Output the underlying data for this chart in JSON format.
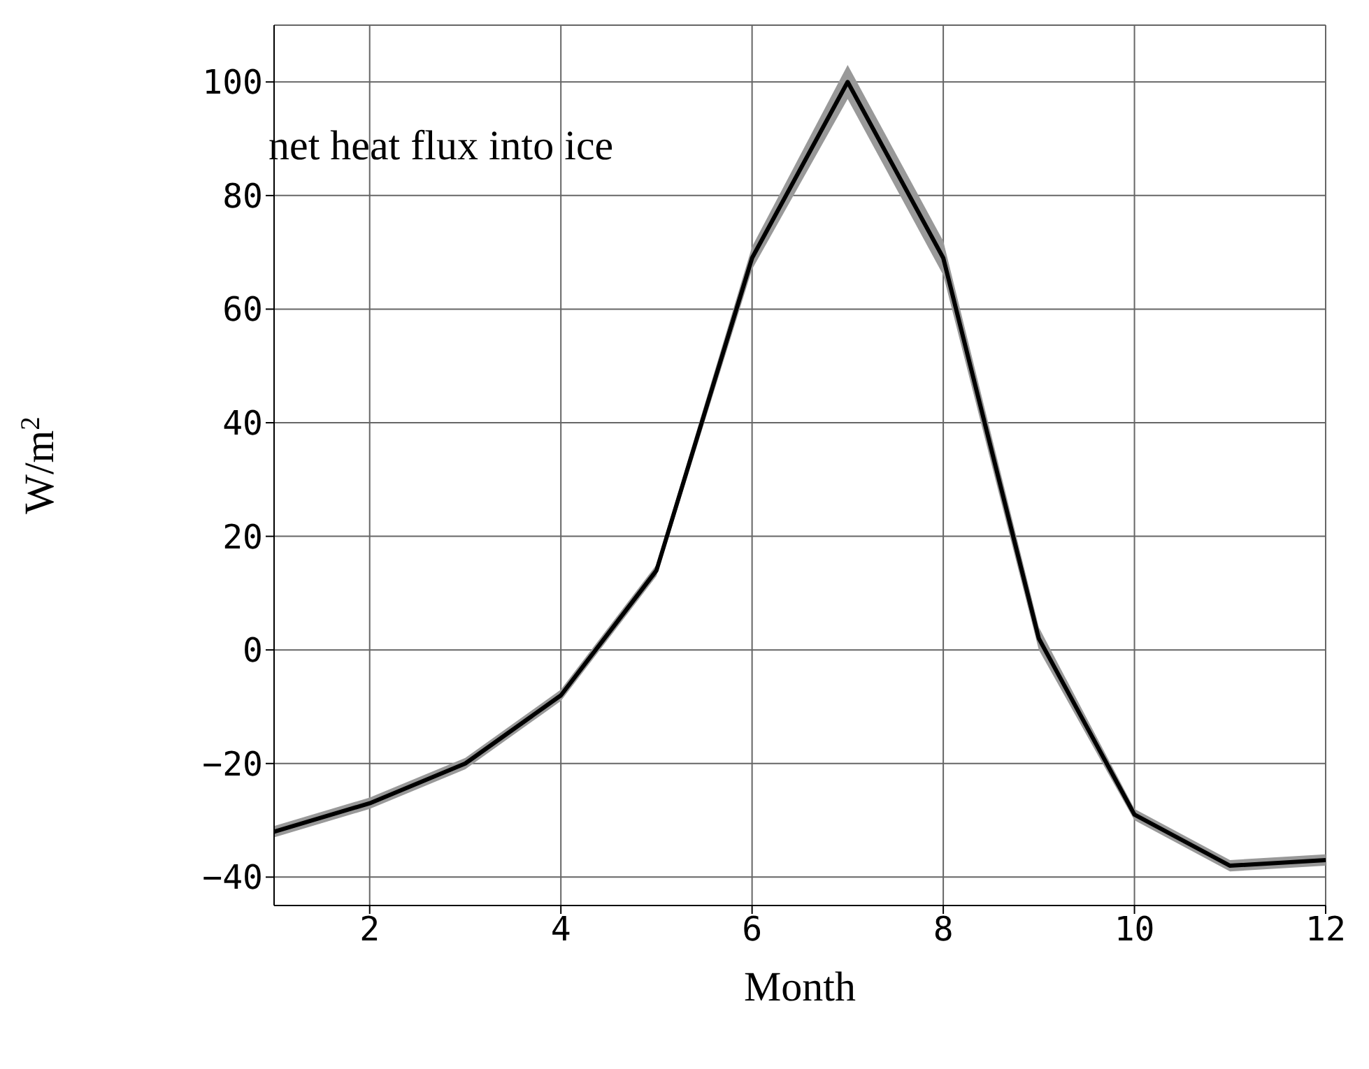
{
  "chart_data": {
    "type": "line",
    "xlabel": "Month",
    "ylabel": "W/m$^{2}$",
    "annotations": [
      "net heat flux into ice"
    ],
    "x": [
      1,
      2,
      3,
      4,
      5,
      6,
      7,
      8,
      9,
      10,
      11,
      12
    ],
    "series": [
      {
        "color": "#000000",
        "values": [
          -32,
          -27,
          -20,
          -8,
          14,
          69,
          100,
          69,
          2,
          -29,
          -38,
          -37
        ],
        "lower": [
          -33,
          -28,
          -21,
          -9,
          13,
          67,
          97,
          66,
          0,
          -30,
          -39,
          -38
        ],
        "upper": [
          -31,
          -26,
          -19,
          -7,
          15,
          71,
          103,
          72,
          4,
          -28,
          -37,
          -36
        ]
      }
    ],
    "xlim": [
      1,
      12
    ],
    "xticks": [
      2,
      4,
      6,
      8,
      10,
      12
    ],
    "ylim": [
      -45,
      110
    ],
    "yticks": [
      -40,
      -20,
      0,
      20,
      40,
      60,
      80,
      100
    ],
    "grid": true,
    "marker": "none",
    "line_style": "solid"
  }
}
